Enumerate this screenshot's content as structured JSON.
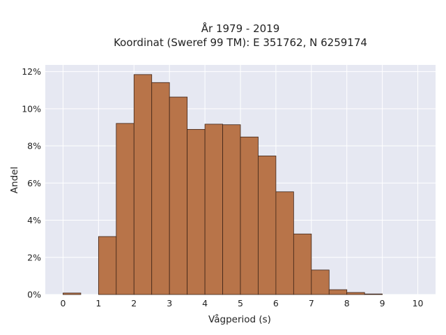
{
  "chart_data": {
    "type": "bar",
    "title": "År 1979 - 2019",
    "subtitle": "Koordinat (Sweref 99 TM): E 351762, N 6259174",
    "xlabel": "Vågperiod (s)",
    "ylabel": "Andel",
    "xlim": [
      -0.5,
      10.5
    ],
    "ylim": [
      0,
      0.1236
    ],
    "x_ticks": [
      0,
      1,
      2,
      3,
      4,
      5,
      6,
      7,
      8,
      9,
      10
    ],
    "y_ticks": [
      0,
      0.02,
      0.04,
      0.06,
      0.08,
      0.1,
      0.12
    ],
    "y_tick_labels": [
      "0%",
      "2%",
      "4%",
      "6%",
      "8%",
      "10%",
      "12%"
    ],
    "bin_width": 0.5,
    "bins": [
      {
        "start": 0.0,
        "value": 0.0008
      },
      {
        "start": 0.5,
        "value": 0.0
      },
      {
        "start": 1.0,
        "value": 0.0312
      },
      {
        "start": 1.5,
        "value": 0.0921
      },
      {
        "start": 2.0,
        "value": 0.1184
      },
      {
        "start": 2.5,
        "value": 0.1141
      },
      {
        "start": 3.0,
        "value": 0.1063
      },
      {
        "start": 3.5,
        "value": 0.0889
      },
      {
        "start": 4.0,
        "value": 0.0917
      },
      {
        "start": 4.5,
        "value": 0.0914
      },
      {
        "start": 5.0,
        "value": 0.0848
      },
      {
        "start": 5.5,
        "value": 0.0746
      },
      {
        "start": 6.0,
        "value": 0.0553
      },
      {
        "start": 6.5,
        "value": 0.0326
      },
      {
        "start": 7.0,
        "value": 0.0132
      },
      {
        "start": 7.5,
        "value": 0.0026
      },
      {
        "start": 8.0,
        "value": 0.0011
      },
      {
        "start": 8.5,
        "value": 0.0003
      }
    ],
    "grid": true,
    "colors": {
      "bar_fill": "#b87449",
      "bar_stroke": "#3d2418",
      "plot_bg": "#e6e8f2",
      "grid": "#ffffff"
    }
  }
}
